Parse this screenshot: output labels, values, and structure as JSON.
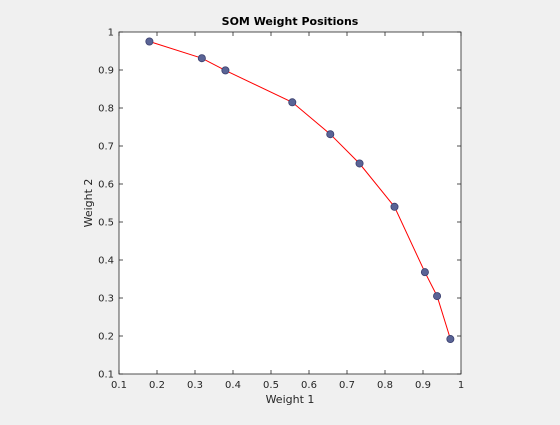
{
  "chart_data": {
    "type": "line",
    "title": "SOM Weight Positions",
    "xlabel": "Weight 1",
    "ylabel": "Weight 2",
    "xlim": [
      0.1,
      1.0
    ],
    "ylim": [
      0.1,
      1.0
    ],
    "xticks": [
      "0.1",
      "0.2",
      "0.3",
      "0.4",
      "0.5",
      "0.6",
      "0.7",
      "0.8",
      "0.9",
      "1"
    ],
    "yticks": [
      "0.1",
      "0.2",
      "0.3",
      "0.4",
      "0.5",
      "0.6",
      "0.7",
      "0.8",
      "0.9",
      "1"
    ],
    "grid": false,
    "legend": false,
    "series": [
      {
        "x": [
          0.18,
          0.318,
          0.38,
          0.556,
          0.656,
          0.733,
          0.825,
          0.905,
          0.937,
          0.972
        ],
        "y": [
          0.975,
          0.931,
          0.899,
          0.815,
          0.731,
          0.654,
          0.54,
          0.368,
          0.305,
          0.192
        ],
        "line_color": "#ff0000",
        "marker_fill": "#5a6496",
        "marker_edge": "#3a3f6e"
      }
    ]
  }
}
